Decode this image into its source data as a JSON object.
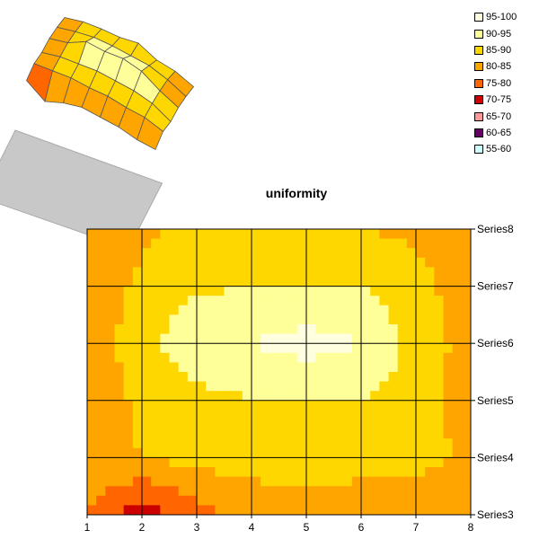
{
  "chart_data": {
    "type": "heatmap",
    "subtype": "contour",
    "title": "uniformity",
    "x_categories": [
      "1",
      "2",
      "3",
      "4",
      "5",
      "6",
      "7",
      "8"
    ],
    "series": [
      {
        "name": "Series3",
        "values": [
          80,
          72,
          78,
          82,
          82,
          82,
          80,
          80
        ]
      },
      {
        "name": "Series4",
        "values": [
          83,
          85,
          87,
          87,
          88,
          87,
          87,
          84
        ]
      },
      {
        "name": "Series5",
        "values": [
          82,
          86,
          88,
          90,
          90,
          90,
          88,
          82
        ]
      },
      {
        "name": "Series6",
        "values": [
          83,
          87,
          95,
          95,
          97,
          95,
          88,
          83
        ]
      },
      {
        "name": "Series7",
        "values": [
          82,
          86,
          89,
          90,
          90,
          90,
          87,
          82
        ]
      },
      {
        "name": "Series8",
        "values": [
          80,
          84,
          86,
          87,
          90,
          85,
          84,
          80
        ]
      }
    ],
    "legend": {
      "position": "top-right",
      "entries": [
        {
          "label": "95-100",
          "color": "#FFFFE0"
        },
        {
          "label": "90-95",
          "color": "#FFFF99"
        },
        {
          "label": "85-90",
          "color": "#FFD700"
        },
        {
          "label": "80-85",
          "color": "#FFA500"
        },
        {
          "label": "75-80",
          "color": "#FF6600"
        },
        {
          "label": "70-75",
          "color": "#CC0000"
        },
        {
          "label": "65-70",
          "color": "#FF9999"
        },
        {
          "label": "60-65",
          "color": "#660066"
        },
        {
          "label": "55-60",
          "color": "#CCFFFF"
        }
      ]
    },
    "grid": true
  }
}
